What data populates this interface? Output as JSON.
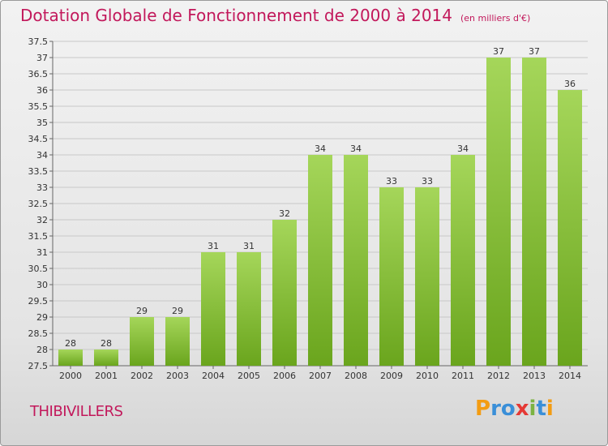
{
  "title": "Dotation Globale de Fonctionnement de 2000 à 2014",
  "unit_note": "(en milliers d'€)",
  "commune": "THIBIVILLERS",
  "logo": {
    "text": "Proxiti",
    "letters": [
      {
        "char": "P",
        "color": "#f39c12"
      },
      {
        "char": "r",
        "color": "#3a8fd8"
      },
      {
        "char": "o",
        "color": "#3a8fd8"
      },
      {
        "char": "x",
        "color": "#e53935"
      },
      {
        "char": "i",
        "color": "#7cb342"
      },
      {
        "char": "t",
        "color": "#3a8fd8"
      },
      {
        "char": "i",
        "color": "#f39c12"
      }
    ]
  },
  "colors": {
    "bar_top": "#a5d65a",
    "bar_bottom": "#6aa51d",
    "grid": "#c8c8c8",
    "title": "#c2185b"
  },
  "chart_data": {
    "type": "bar",
    "title": "Dotation Globale de Fonctionnement de 2000 à 2014",
    "subtitle": "(en milliers d'€)",
    "xlabel": "",
    "ylabel": "",
    "categories": [
      "2000",
      "2001",
      "2002",
      "2003",
      "2004",
      "2005",
      "2006",
      "2007",
      "2008",
      "2009",
      "2010",
      "2011",
      "2012",
      "2013",
      "2014"
    ],
    "values": [
      28,
      28,
      29,
      29,
      31,
      31,
      32,
      34,
      34,
      33,
      33,
      34,
      37,
      37,
      36
    ],
    "ylim": [
      27.5,
      37.5
    ],
    "yticks": [
      "27.5",
      "28",
      "28.5",
      "29",
      "29.5",
      "30",
      "30.5",
      "31",
      "31.5",
      "32",
      "32.5",
      "33",
      "33.5",
      "34",
      "34.5",
      "35",
      "35.5",
      "36",
      "36.5",
      "37",
      "37.5"
    ],
    "grid": true,
    "legend": "none"
  }
}
